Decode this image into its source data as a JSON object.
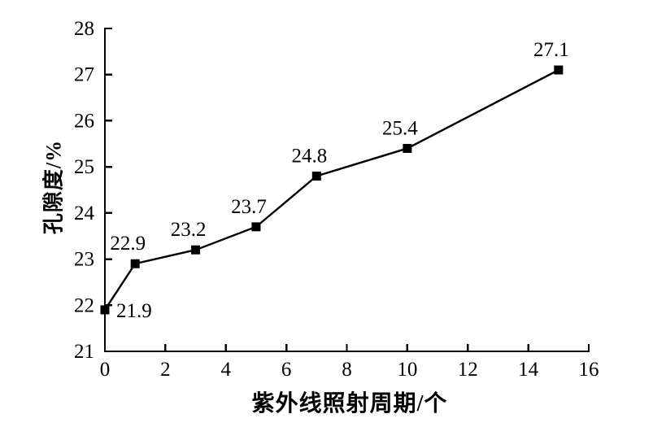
{
  "page": {
    "background_color": "#ffffff",
    "foreground_color": "#000000"
  },
  "chart_data": {
    "type": "line",
    "title": "",
    "xlabel": "紫外线照射周期/个",
    "ylabel": "孔隙度/%",
    "x": [
      0,
      1,
      3,
      5,
      7,
      10,
      15
    ],
    "y": [
      21.9,
      22.9,
      23.2,
      23.7,
      24.8,
      25.4,
      27.1
    ],
    "point_labels": [
      "21.9",
      "22.9",
      "23.2",
      "23.7",
      "24.8",
      "25.4",
      "27.1"
    ],
    "point_label_positions": [
      "right",
      "above",
      "above",
      "above",
      "above",
      "above",
      "above"
    ],
    "xlim": [
      0,
      16
    ],
    "ylim": [
      21,
      28
    ],
    "x_ticks": [
      0,
      2,
      4,
      6,
      8,
      10,
      12,
      14,
      16
    ],
    "y_ticks": [
      21,
      22,
      23,
      24,
      25,
      26,
      27,
      28
    ],
    "grid": false,
    "legend": null,
    "line_color": "#000000",
    "marker": "filled-square",
    "marker_color": "#000000",
    "spines": [
      "left",
      "bottom"
    ],
    "tick_direction": "in"
  }
}
